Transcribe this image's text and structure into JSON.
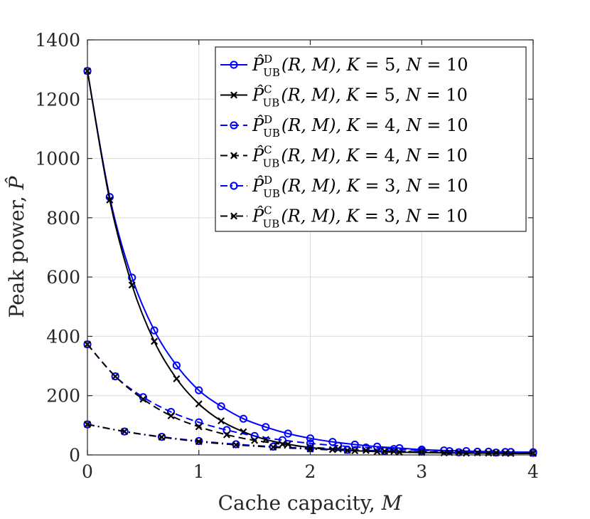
{
  "chart_data": {
    "type": "line",
    "title": "",
    "xlabel": "Cache capacity, M",
    "xlabel_parts": {
      "text": "Cache capacity, ",
      "var": "M"
    },
    "ylabel": "Peak power, P̂",
    "ylabel_parts": {
      "text": "Peak power, ",
      "var": "P̂"
    },
    "xlim": [
      0,
      4
    ],
    "ylim": [
      0,
      1400
    ],
    "xticks": [
      0,
      1,
      2,
      3,
      4
    ],
    "yticks": [
      0,
      200,
      400,
      600,
      800,
      1000,
      1200,
      1400
    ],
    "grid": true,
    "legend_position": "top-right",
    "series": [
      {
        "name": "P̂_UB^D(R, M), K = 5, N = 10",
        "legend": {
          "sup": "D",
          "sub": "UB",
          "args": "(R, M),",
          "K": "5",
          "N": "10"
        },
        "color": "#0000ff",
        "dash": "solid",
        "marker": "o",
        "x": [
          0,
          0.2,
          0.4,
          0.6,
          0.8,
          1.0,
          1.2,
          1.4,
          1.6,
          1.8,
          2.0,
          2.2,
          2.4,
          2.6,
          2.8,
          3.0,
          3.2,
          3.4,
          3.6,
          3.8,
          4.0
        ],
        "y": [
          1295,
          870,
          598,
          420,
          302,
          218,
          164,
          122,
          94,
          72,
          56,
          44,
          35,
          28,
          23,
          18,
          15,
          13,
          11,
          10,
          9
        ]
      },
      {
        "name": "P̂_UB^C(R, M), K = 5, N = 10",
        "legend": {
          "sup": "C",
          "sub": "UB",
          "args": "(R, M),",
          "K": "5",
          "N": "10"
        },
        "color": "#000000",
        "dash": "solid",
        "marker": "x",
        "x": [
          0,
          0.2,
          0.4,
          0.6,
          0.8,
          1.0,
          1.2,
          1.4,
          1.6,
          1.8,
          2.0,
          2.2,
          2.4,
          2.6,
          2.8,
          3.0,
          3.2,
          3.4,
          3.6,
          3.8,
          4.0
        ],
        "y": [
          1295,
          860,
          573,
          383,
          257,
          172,
          115,
          78,
          52,
          36,
          25,
          18,
          14,
          11,
          9,
          8,
          7,
          6,
          6,
          5,
          5
        ]
      },
      {
        "name": "P̂_UB^D(R, M), K = 4, N = 10",
        "legend": {
          "sup": "D",
          "sub": "UB",
          "args": "(R, M),",
          "K": "4",
          "N": "10"
        },
        "color": "#0000ff",
        "dash": "dashed",
        "marker": "o",
        "x": [
          0,
          0.25,
          0.5,
          0.75,
          1.0,
          1.25,
          1.5,
          1.75,
          2.0,
          2.25,
          2.5,
          2.75,
          3.0,
          3.25,
          3.5,
          3.75,
          4.0
        ],
        "y": [
          373,
          265,
          195,
          145,
          110,
          84,
          64,
          50,
          39,
          31,
          25,
          20,
          16,
          13,
          11,
          10,
          9
        ]
      },
      {
        "name": "P̂_UB^C(R, M), K = 4, N = 10",
        "legend": {
          "sup": "C",
          "sub": "UB",
          "args": "(R, M),",
          "K": "4",
          "N": "10"
        },
        "color": "#000000",
        "dash": "dashed",
        "marker": "x",
        "x": [
          0,
          0.25,
          0.5,
          0.75,
          1.0,
          1.25,
          1.5,
          1.75,
          2.0,
          2.25,
          2.5,
          2.75,
          3.0,
          3.25,
          3.5,
          3.75,
          4.0
        ],
        "y": [
          373,
          265,
          188,
          132,
          95,
          68,
          49,
          36,
          26,
          20,
          15,
          12,
          10,
          8,
          7,
          6,
          6
        ]
      },
      {
        "name": "P̂_UB^D(R, M), K = 3, N = 10",
        "legend": {
          "sup": "D",
          "sub": "UB",
          "args": "(R, M),",
          "K": "3",
          "N": "10"
        },
        "color": "#0000ff",
        "dash": "dashdot",
        "marker": "o",
        "x": [
          0,
          0.333,
          0.667,
          1.0,
          1.333,
          1.667,
          2.0,
          2.333,
          2.667,
          3.0,
          3.333,
          3.667,
          4.0
        ],
        "y": [
          103,
          79,
          61,
          47,
          36,
          28,
          22,
          17,
          14,
          11,
          9,
          8,
          7
        ]
      },
      {
        "name": "P̂_UB^C(R, M), K = 3, N = 10",
        "legend": {
          "sup": "C",
          "sub": "UB",
          "args": "(R, M),",
          "K": "3",
          "N": "10"
        },
        "color": "#000000",
        "dash": "dashdot",
        "marker": "x",
        "x": [
          0,
          0.333,
          0.667,
          1.0,
          1.333,
          1.667,
          2.0,
          2.333,
          2.667,
          3.0,
          3.333,
          3.667,
          4.0
        ],
        "y": [
          103,
          79,
          60,
          45,
          34,
          26,
          20,
          15,
          12,
          10,
          8,
          7,
          6
        ]
      }
    ]
  }
}
